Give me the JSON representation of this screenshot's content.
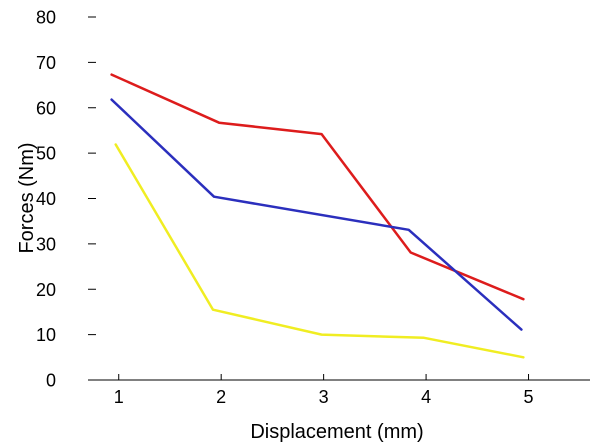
{
  "chart_data": {
    "type": "line",
    "title": "",
    "xlabel": "Displacement (mm)",
    "ylabel": "Forces (Nm)",
    "xlim": [
      0.7,
      5.6
    ],
    "ylim": [
      0,
      80
    ],
    "x_ticks": [
      "1",
      "2",
      "3",
      "4",
      "5"
    ],
    "y_ticks": [
      "0",
      "10",
      "20",
      "30",
      "40",
      "50",
      "60",
      "70",
      "80"
    ],
    "grid": false,
    "legend": "none",
    "series": [
      {
        "color": "#dd1c1c",
        "x": [
          0.93,
          1.98,
          2.98,
          3.85,
          4.95
        ],
        "y": [
          67.3,
          56.7,
          54.2,
          28.1,
          17.8
        ]
      },
      {
        "color": "#2b2fbd",
        "x": [
          0.93,
          1.93,
          3.83,
          4.93
        ],
        "y": [
          61.8,
          40.4,
          33.1,
          11.1
        ]
      },
      {
        "color": "#f0ed22",
        "x": [
          0.97,
          1.92,
          2.98,
          3.98,
          4.95
        ],
        "y": [
          51.9,
          15.5,
          10.0,
          9.3,
          5.0
        ]
      }
    ]
  }
}
